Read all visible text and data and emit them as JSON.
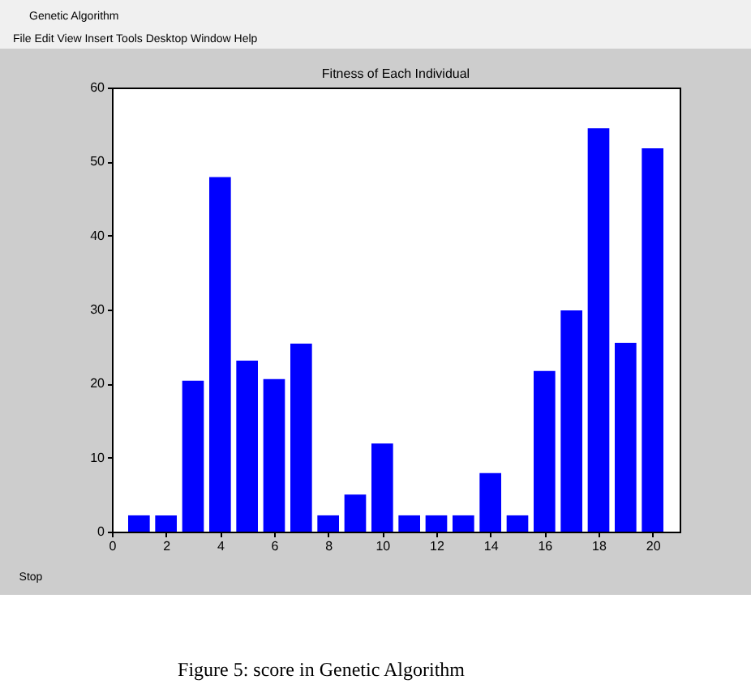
{
  "chart_data": {
    "type": "bar",
    "title": "Fitness of Each Individual",
    "x": [
      1,
      2,
      3,
      4,
      5,
      6,
      7,
      8,
      9,
      10,
      11,
      12,
      13,
      14,
      15,
      16,
      17,
      18,
      19,
      20
    ],
    "values": [
      2.2,
      2.2,
      20.4,
      47.9,
      23.1,
      20.6,
      25.4,
      2.2,
      5.0,
      11.9,
      2.2,
      2.2,
      2.2,
      7.9,
      2.2,
      21.7,
      29.9,
      54.5,
      25.5,
      51.8
    ],
    "color": "#0000ff",
    "xlim": [
      0,
      21
    ],
    "xticks": [
      0,
      2,
      4,
      6,
      8,
      10,
      12,
      14,
      16,
      18,
      20
    ],
    "ylim": [
      0,
      60
    ],
    "yticks": [
      0,
      10,
      20,
      30,
      40,
      50,
      60
    ],
    "annotations": [
      "Genetic Algorithm",
      "File Edit View Insert Tools Desktop Window Help",
      "Stop",
      "Figure 5: score in Genetic Algorithm"
    ]
  }
}
